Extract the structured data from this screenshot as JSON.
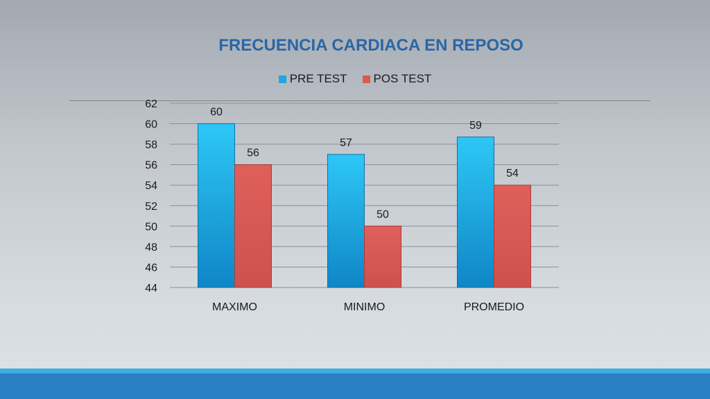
{
  "colors": {
    "pre_test": "#1ea7e2",
    "pos_test": "#d95955",
    "title": "#2a66a4"
  },
  "chart_data": {
    "type": "bar",
    "title": "FRECUENCIA CARDIACA EN REPOSO",
    "categories": [
      "MAXIMO",
      "MINIMO",
      "PROMEDIO"
    ],
    "series": [
      {
        "name": "PRE TEST",
        "values": [
          60,
          57,
          58.7
        ],
        "labels": [
          "60",
          "57",
          "59"
        ]
      },
      {
        "name": "POS TEST",
        "values": [
          56,
          50,
          54
        ],
        "labels": [
          "56",
          "50",
          "54"
        ]
      }
    ],
    "ylim": [
      44,
      62
    ],
    "yticks": [
      "44",
      "46",
      "48",
      "50",
      "52",
      "54",
      "56",
      "58",
      "60",
      "62"
    ],
    "grid": true,
    "legend_position": "top"
  }
}
